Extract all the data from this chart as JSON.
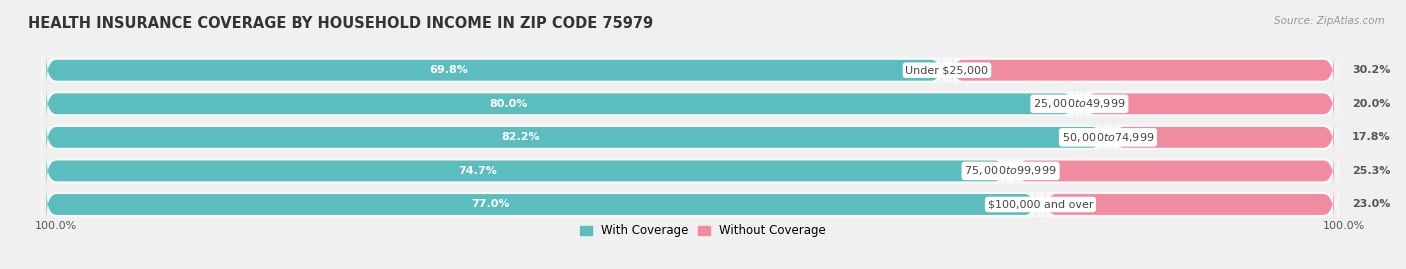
{
  "title": "HEALTH INSURANCE COVERAGE BY HOUSEHOLD INCOME IN ZIP CODE 75979",
  "source": "Source: ZipAtlas.com",
  "categories": [
    "Under $25,000",
    "$25,000 to $49,999",
    "$50,000 to $74,999",
    "$75,000 to $99,999",
    "$100,000 and over"
  ],
  "with_coverage": [
    69.8,
    80.0,
    82.2,
    74.7,
    77.0
  ],
  "without_coverage": [
    30.2,
    20.0,
    17.8,
    25.3,
    23.0
  ],
  "color_with": "#5BBDBD",
  "color_without": "#F08BA0",
  "background_color": "#f0f0f0",
  "bar_background": "#e8e8e8",
  "bar_bg_light": "#f8f8f8",
  "title_fontsize": 10.5,
  "label_fontsize": 8,
  "legend_fontsize": 8.5,
  "bar_height": 0.62,
  "total_width": 100,
  "footer_pct_left": "100.0%",
  "footer_pct_right": "100.0%"
}
